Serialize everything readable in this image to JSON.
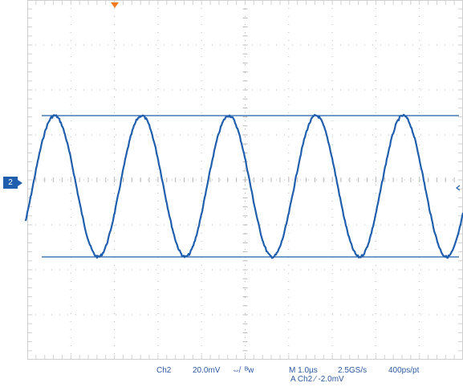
{
  "scope": {
    "channel_marker": "2",
    "colors": {
      "waveform": "#1f5fad",
      "grid_border": "#cfcfcf",
      "grid_dots": "#b8b8b8",
      "trigger_marker": "#f07a20",
      "readout_text": "#2d5aa0"
    },
    "grid": {
      "divisions_x": 10,
      "divisions_y": 8,
      "minor_per_division": 5
    },
    "waveform": {
      "shape": "sine",
      "periods_visible": 5,
      "cursor_lines": "horizontal, at waveform peak and trough"
    }
  },
  "readouts": {
    "channel": "Ch2",
    "volts_per_div": "20.0mV",
    "coupling_symbol": "⇎",
    "bandwidth_limit": "ᴮw",
    "time_per_div": "M 1.0µs",
    "sample_rate": "2.5GS/s",
    "resolution": "400ps/pt",
    "trigger": "A  Ch2  ⁄  -2.0mV"
  }
}
